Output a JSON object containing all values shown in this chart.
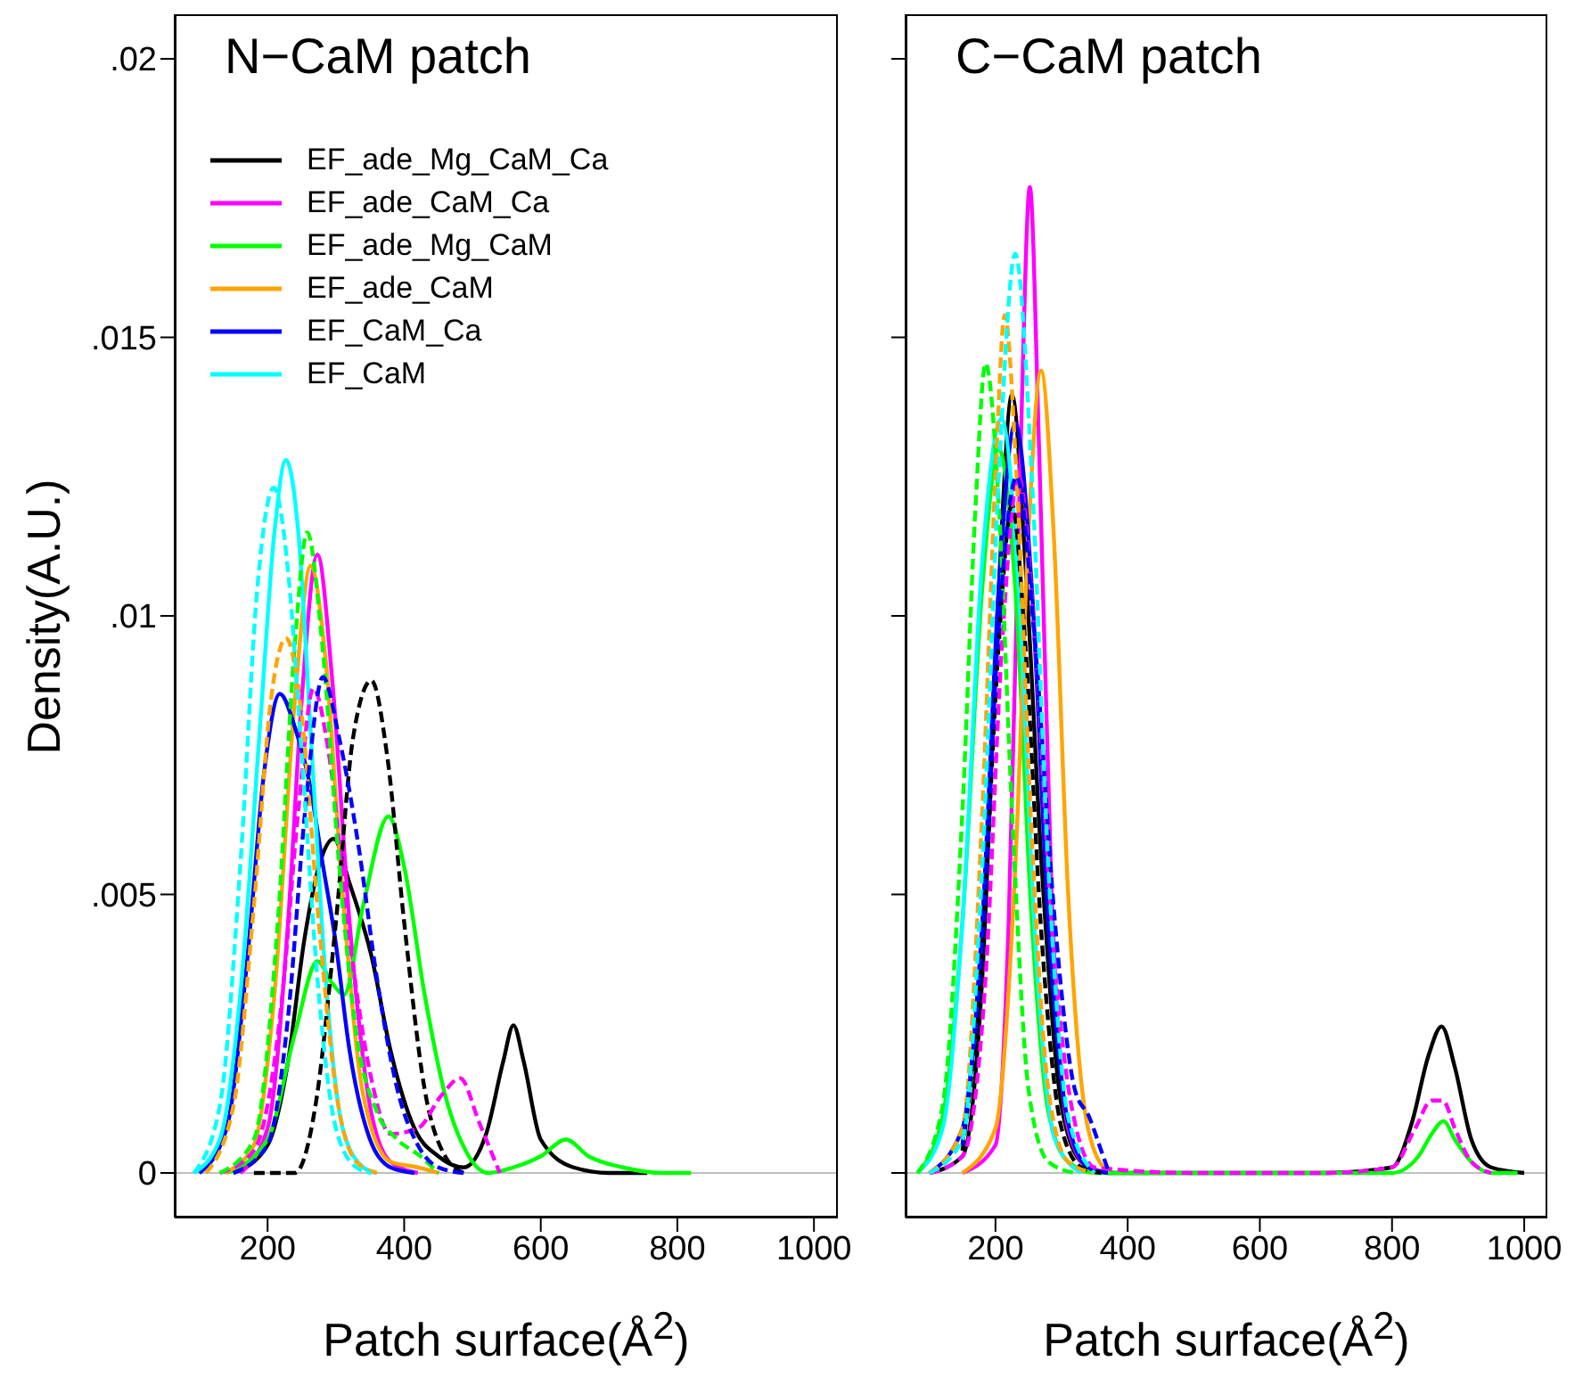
{
  "chart_data": [
    {
      "type": "line",
      "title": "N−CaM patch",
      "xlabel": "Patch surface(Å$^{2}$)",
      "ylabel": "Density(A.U.)",
      "xlim": [
        64,
        1035
      ],
      "xticks": [
        200,
        400,
        600,
        800,
        1000
      ],
      "ylim": [
        -0.0008,
        0.0208
      ],
      "yticks": [
        0,
        {
          "value": 0.005,
          "label": ".005"
        },
        {
          "value": 0.01,
          "label": ".01"
        },
        {
          "value": 0.015,
          "label": ".015"
        },
        {
          "value": 0.02,
          "label": ".02"
        }
      ],
      "legend": "top left",
      "ref_lines": [
        {
          "axis": "y",
          "value": 0,
          "color": "#bebebe"
        }
      ],
      "series": [
        {
          "name": "EF_ade_Mg_CaM_Ca",
          "color": "#000000",
          "line_style": "solid",
          "x": [
            150,
            200,
            230,
            254,
            275,
            297,
            320,
            352,
            380,
            415,
            450,
            487,
            520,
            545,
            560,
            575,
            600,
            648,
            700,
            756
          ],
          "values": [
            0,
            0.0005,
            0.002,
            0.0042,
            0.0055,
            0.006,
            0.0052,
            0.0039,
            0.0022,
            0.0008,
            0.0003,
            0.0001,
            0.0007,
            0.002,
            0.00265,
            0.002,
            0.0006,
            0.0001,
            0,
            0
          ]
        },
        {
          "name": "EF_ade_CaM_Ca",
          "color": "#ff00ff",
          "line_style": "solid",
          "x": [
            160,
            200,
            230,
            250,
            273,
            295,
            320,
            350,
            380,
            420
          ],
          "values": [
            0,
            0.0008,
            0.0045,
            0.0085,
            0.0111,
            0.0088,
            0.0045,
            0.0012,
            0.0002,
            0
          ]
        },
        {
          "name": "EF_ade_Mg_CaM",
          "color": "#00ff00",
          "line_style": "solid",
          "x": [
            140,
            200,
            240,
            273,
            295,
            312,
            340,
            377,
            400,
            430,
            460,
            490,
            523,
            560,
            600,
            637,
            670,
            720,
            780,
            820
          ],
          "values": [
            0,
            0.0006,
            0.0025,
            0.0038,
            0.0034,
            0.0032,
            0.0048,
            0.0064,
            0.0055,
            0.0032,
            0.0014,
            0.0004,
            0,
            0.0001,
            0.0003,
            0.0006,
            0.0003,
            0.0001,
            0,
            0
          ]
        },
        {
          "name": "EF_ade_CaM",
          "color": "#ffa500",
          "line_style": "solid",
          "x": [
            137,
            180,
            210,
            240,
            263,
            285,
            310,
            340,
            380,
            420,
            451
          ],
          "values": [
            0,
            0.0005,
            0.0032,
            0.0085,
            0.0109,
            0.0092,
            0.005,
            0.0014,
            0.0002,
            0.0001,
            0
          ]
        },
        {
          "name": "EF_CaM_Ca",
          "color": "#0000ff",
          "line_style": "solid",
          "x": [
            100,
            140,
            170,
            195,
            218,
            240,
            263,
            280,
            299,
            320,
            350,
            380,
            415
          ],
          "values": [
            0,
            0.0008,
            0.0038,
            0.0072,
            0.0086,
            0.008,
            0.0069,
            0.0056,
            0.0042,
            0.0022,
            0.0006,
            0.0001,
            0
          ]
        },
        {
          "name": "EF_CaM",
          "color": "#00ffff",
          "line_style": "solid",
          "x": [
            92,
            130,
            160,
            190,
            210,
            227,
            245,
            265,
            285,
            310,
            340,
            360
          ],
          "values": [
            0,
            0.0006,
            0.0032,
            0.0082,
            0.0115,
            0.0128,
            0.0115,
            0.0075,
            0.0035,
            0.0008,
            0.0001,
            0
          ]
        },
        {
          "color": "#000000",
          "line_style": "dashed",
          "x": [
            180,
            240,
            270,
            300,
            325,
            352,
            375,
            400,
            430,
            460,
            487
          ],
          "values": [
            0,
            0,
            0.0012,
            0.0045,
            0.0078,
            0.00884,
            0.0075,
            0.0045,
            0.0015,
            0.0003,
            0
          ]
        },
        {
          "color": "#ff00ff",
          "line_style": "dashed",
          "x": [
            130,
            180,
            220,
            245,
            267,
            290,
            320,
            350,
            380,
            420,
            455,
            482,
            510,
            540
          ],
          "values": [
            0,
            0.0004,
            0.003,
            0.0065,
            0.0087,
            0.0075,
            0.0042,
            0.0018,
            0.0007,
            0.0008,
            0.0014,
            0.0017,
            0.0009,
            0
          ]
        },
        {
          "color": "#00ff00",
          "line_style": "dashed",
          "x": [
            130,
            180,
            215,
            240,
            258,
            280,
            305,
            330,
            360,
            390,
            424,
            450
          ],
          "values": [
            0,
            0.0006,
            0.0045,
            0.0095,
            0.0115,
            0.0095,
            0.0055,
            0.0025,
            0.0011,
            0.0006,
            0.0003,
            0
          ]
        },
        {
          "color": "#ffa500",
          "line_style": "dashed",
          "x": [
            110,
            150,
            180,
            205,
            227,
            250,
            275,
            300,
            330,
            360
          ],
          "values": [
            0,
            0.0012,
            0.0048,
            0.0085,
            0.0096,
            0.0082,
            0.0045,
            0.0015,
            0.0002,
            0
          ]
        },
        {
          "color": "#0000ff",
          "line_style": "dashed",
          "x": [
            150,
            200,
            230,
            255,
            281,
            305,
            334,
            360,
            390,
            420,
            450,
            487
          ],
          "values": [
            0,
            0.0005,
            0.0028,
            0.0065,
            0.0089,
            0.0078,
            0.0058,
            0.0035,
            0.0015,
            0.0005,
            0.0001,
            0
          ]
        },
        {
          "color": "#00ffff",
          "line_style": "dashed",
          "x": [
            92,
            130,
            160,
            185,
            209,
            230,
            250,
            275,
            300,
            330,
            352
          ],
          "values": [
            0,
            0.0012,
            0.0055,
            0.0105,
            0.0123,
            0.0108,
            0.0075,
            0.0032,
            0.0008,
            0.0001,
            0
          ]
        }
      ]
    },
    {
      "type": "line",
      "title": "C−CaM patch",
      "xlabel": "Patch surface(Å$^{2}$)",
      "xlim": [
        64,
        1035
      ],
      "xticks": [
        200,
        400,
        600,
        800,
        1000
      ],
      "ylim": [
        -0.0008,
        0.0208
      ],
      "yticks": [
        {
          "value": 0,
          "label": null
        },
        {
          "value": 0.005,
          "label": null
        },
        {
          "value": 0.01,
          "label": null
        },
        {
          "value": 0.015,
          "label": null
        },
        {
          "value": 0.02,
          "label": null
        }
      ],
      "tick_labels": "x",
      "ref_lines": [
        {
          "axis": "y",
          "value": 0,
          "color": "#bebebe"
        }
      ],
      "series": [
        {
          "color": "#000000",
          "line_style": "solid",
          "x": [
            100,
            150,
            180,
            205,
            225,
            245,
            270,
            300,
            330,
            370,
            500,
            700,
            800,
            830,
            855,
            875,
            895,
            920,
            950,
            1000
          ],
          "values": [
            0,
            0.0003,
            0.0035,
            0.0105,
            0.01397,
            0.011,
            0.0055,
            0.0012,
            0.0002,
            0,
            0,
            0,
            0.0001,
            0.0009,
            0.0021,
            0.00263,
            0.0019,
            0.0006,
            0.0001,
            0
          ]
        },
        {
          "color": "#ff00ff",
          "line_style": "solid",
          "x": [
            150,
            200,
            220,
            238,
            252,
            266,
            285,
            310,
            340,
            380
          ],
          "values": [
            0,
            0.0005,
            0.0045,
            0.013,
            0.0177,
            0.013,
            0.005,
            0.0008,
            0.0001,
            0
          ]
        },
        {
          "color": "#00ff00",
          "line_style": "solid",
          "x": [
            82,
            120,
            150,
            180,
            205,
            230,
            255,
            280,
            310,
            350,
            500,
            700,
            800,
            840,
            860,
            878,
            895,
            920,
            950,
            990
          ],
          "values": [
            0,
            0.001,
            0.0045,
            0.0105,
            0.013,
            0.0105,
            0.0045,
            0.0011,
            0.0002,
            0,
            0,
            0,
            0,
            0.0003,
            0.0007,
            0.00093,
            0.0006,
            0.0002,
            0,
            0
          ]
        },
        {
          "color": "#ffa500",
          "line_style": "solid",
          "x": [
            150,
            200,
            230,
            250,
            269,
            288,
            310,
            340,
            370
          ],
          "values": [
            0,
            0.0008,
            0.0055,
            0.0115,
            0.0144,
            0.0115,
            0.005,
            0.0008,
            0
          ]
        },
        {
          "color": "#0000ff",
          "line_style": "solid",
          "x": [
            100,
            150,
            180,
            205,
            230,
            255,
            280,
            310,
            340,
            370
          ],
          "values": [
            0,
            0.0008,
            0.0045,
            0.0105,
            0.01346,
            0.0105,
            0.0045,
            0.0009,
            0.0001,
            0
          ]
        },
        {
          "color": "#00ffff",
          "line_style": "solid",
          "x": [
            82,
            120,
            150,
            180,
            209,
            235,
            260,
            290,
            330
          ],
          "values": [
            0,
            0.0008,
            0.0045,
            0.011,
            0.01354,
            0.0105,
            0.0042,
            0.0006,
            0
          ]
        },
        {
          "color": "#000000",
          "line_style": "dashed",
          "x": [
            150,
            180,
            205,
            225,
            245,
            270,
            300,
            330,
            360
          ],
          "values": [
            0.0004,
            0.004,
            0.0095,
            0.012,
            0.0095,
            0.0042,
            0.0008,
            0.0001,
            0
          ]
        },
        {
          "color": "#ff00ff",
          "line_style": "dashed",
          "x": [
            100,
            150,
            185,
            210,
            235,
            260,
            285,
            315,
            350,
            500,
            700,
            800,
            835,
            860,
            877,
            895,
            920,
            950
          ],
          "values": [
            0,
            0.0003,
            0.0035,
            0.0095,
            0.0125,
            0.0095,
            0.0045,
            0.0012,
            0.0001,
            0,
            0,
            0.0001,
            0.0008,
            0.0013,
            0.0013,
            0.0008,
            0.0002,
            0
          ]
        },
        {
          "color": "#00ff00",
          "line_style": "dashed",
          "x": [
            82,
            120,
            150,
            170,
            185,
            205,
            225,
            250,
            280,
            320
          ],
          "values": [
            0,
            0.0012,
            0.0065,
            0.012,
            0.01453,
            0.012,
            0.0065,
            0.0015,
            0.0002,
            0
          ]
        },
        {
          "color": "#ffa500",
          "line_style": "dashed",
          "x": [
            100,
            150,
            180,
            200,
            214,
            232,
            255,
            280,
            310,
            350
          ],
          "values": [
            0,
            0.0008,
            0.0065,
            0.0125,
            0.0154,
            0.0125,
            0.006,
            0.0015,
            0.0002,
            0
          ]
        },
        {
          "color": "#0000ff",
          "line_style": "dashed",
          "x": [
            150,
            180,
            205,
            232,
            260,
            290,
            320,
            342,
            360,
            372
          ],
          "values": [
            0.0005,
            0.0042,
            0.0098,
            0.0125,
            0.0095,
            0.0045,
            0.0015,
            0.001,
            0.0004,
            0
          ]
        },
        {
          "color": "#00ffff",
          "line_style": "dashed",
          "x": [
            100,
            150,
            180,
            205,
            230,
            255,
            280,
            310,
            350
          ],
          "values": [
            0,
            0.0006,
            0.0055,
            0.0125,
            0.0165,
            0.0125,
            0.0055,
            0.001,
            0
          ]
        }
      ]
    }
  ]
}
